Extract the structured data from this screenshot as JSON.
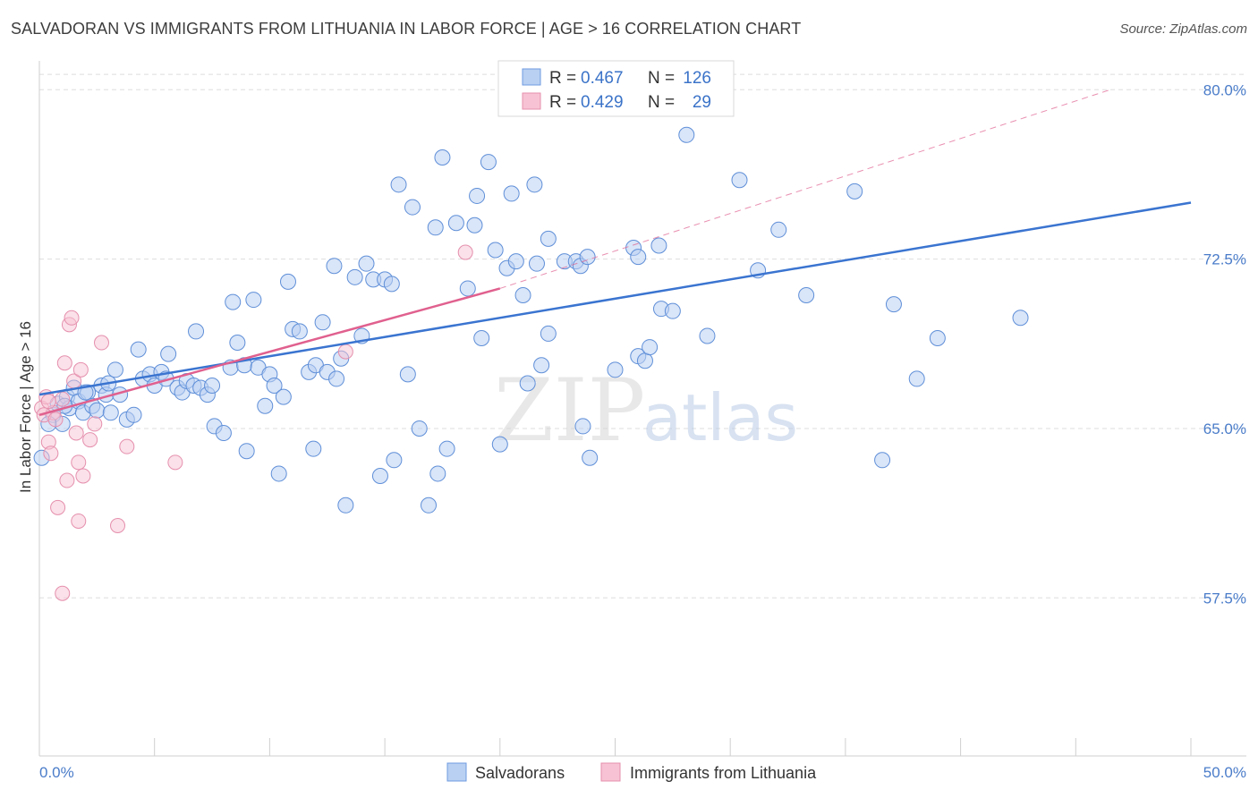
{
  "title": "SALVADORAN VS IMMIGRANTS FROM LITHUANIA IN LABOR FORCE | AGE > 16 CORRELATION CHART",
  "source": "Source: ZipAtlas.com",
  "watermark": {
    "part1": "ZIP",
    "part2": "atlas"
  },
  "colors": {
    "blue": "#3a74d0",
    "blue_fill": "#b9d0f2",
    "pink": "#e0608e",
    "pink_fill": "#f7c3d4",
    "grid": "#dddddd",
    "tick_label": "#4a7cc9"
  },
  "legend": {
    "rows": [
      {
        "r_label": "R =",
        "r_value": "0.467",
        "n_label": "N =",
        "n_value": "126"
      },
      {
        "r_label": "R =",
        "r_value": "0.429",
        "n_label": "N =",
        "n_value": "29"
      }
    ]
  },
  "bottom_legend": [
    "Salvadorans",
    "Immigrants from Lithuania"
  ],
  "chart_data": {
    "type": "scatter",
    "title": "SALVADORAN VS IMMIGRANTS FROM LITHUANIA IN LABOR FORCE | AGE > 16 CORRELATION CHART",
    "xlabel": "",
    "ylabel": "In Labor Force | Age > 16",
    "xlim": [
      0,
      50
    ],
    "ylim": [
      50.5,
      81.2
    ],
    "x_tick_labels": [
      "0.0%",
      "50.0%"
    ],
    "y_ticks": [
      57.5,
      65.0,
      72.5,
      80.0
    ],
    "y_tick_labels": [
      "57.5%",
      "65.0%",
      "72.5%",
      "80.0%"
    ],
    "grid": "horizontal dashed",
    "legend_position": "top-center",
    "series": [
      {
        "name": "Salvadorans",
        "R": 0.467,
        "N": 126,
        "trend": {
          "x": [
            0,
            50
          ],
          "y": [
            66.5,
            75.0
          ]
        },
        "points": [
          [
            0.6,
            65.6
          ],
          [
            0.8,
            66.1
          ],
          [
            1.0,
            65.2
          ],
          [
            1.2,
            66.4
          ],
          [
            1.3,
            65.9
          ],
          [
            1.5,
            66.8
          ],
          [
            1.7,
            66.2
          ],
          [
            1.9,
            65.7
          ],
          [
            2.1,
            66.6
          ],
          [
            2.3,
            66.0
          ],
          [
            2.5,
            65.8
          ],
          [
            2.7,
            66.9
          ],
          [
            2.9,
            66.5
          ],
          [
            3.1,
            65.7
          ],
          [
            3.3,
            67.6
          ],
          [
            3.5,
            66.5
          ],
          [
            3.8,
            65.4
          ],
          [
            4.1,
            65.6
          ],
          [
            4.3,
            68.5
          ],
          [
            4.5,
            67.2
          ],
          [
            4.8,
            67.4
          ],
          [
            5.0,
            66.9
          ],
          [
            5.3,
            67.5
          ],
          [
            5.5,
            67.2
          ],
          [
            5.6,
            68.3
          ],
          [
            6.0,
            66.8
          ],
          [
            6.2,
            66.6
          ],
          [
            6.4,
            67.1
          ],
          [
            6.7,
            66.9
          ],
          [
            6.8,
            69.3
          ],
          [
            7.0,
            66.8
          ],
          [
            7.3,
            66.5
          ],
          [
            7.5,
            66.9
          ],
          [
            7.6,
            65.1
          ],
          [
            8.0,
            64.8
          ],
          [
            8.3,
            67.7
          ],
          [
            8.4,
            70.6
          ],
          [
            8.6,
            68.8
          ],
          [
            8.9,
            67.8
          ],
          [
            9.0,
            64.0
          ],
          [
            9.3,
            70.7
          ],
          [
            9.5,
            67.7
          ],
          [
            9.8,
            66.0
          ],
          [
            10.0,
            67.4
          ],
          [
            10.2,
            66.9
          ],
          [
            10.4,
            63.0
          ],
          [
            10.6,
            66.4
          ],
          [
            10.8,
            71.5
          ],
          [
            11.0,
            69.4
          ],
          [
            11.3,
            69.3
          ],
          [
            11.7,
            67.5
          ],
          [
            11.9,
            64.1
          ],
          [
            12.0,
            67.8
          ],
          [
            12.3,
            69.7
          ],
          [
            12.5,
            67.5
          ],
          [
            12.8,
            72.2
          ],
          [
            12.9,
            67.2
          ],
          [
            13.1,
            68.1
          ],
          [
            13.3,
            61.6
          ],
          [
            13.7,
            71.7
          ],
          [
            14.0,
            69.1
          ],
          [
            14.2,
            72.3
          ],
          [
            14.5,
            71.6
          ],
          [
            14.8,
            62.9
          ],
          [
            15.0,
            71.6
          ],
          [
            15.3,
            71.4
          ],
          [
            15.4,
            63.6
          ],
          [
            15.6,
            75.8
          ],
          [
            16.0,
            67.4
          ],
          [
            16.2,
            74.8
          ],
          [
            16.5,
            65.0
          ],
          [
            16.9,
            61.6
          ],
          [
            17.2,
            73.9
          ],
          [
            17.3,
            63.0
          ],
          [
            17.5,
            77.0
          ],
          [
            17.7,
            64.1
          ],
          [
            18.1,
            74.1
          ],
          [
            18.6,
            71.2
          ],
          [
            18.9,
            74.0
          ],
          [
            19.0,
            75.3
          ],
          [
            19.2,
            69.0
          ],
          [
            19.5,
            76.8
          ],
          [
            19.8,
            72.9
          ],
          [
            20.0,
            64.3
          ],
          [
            20.3,
            72.1
          ],
          [
            20.5,
            75.4
          ],
          [
            20.7,
            72.4
          ],
          [
            21.0,
            70.9
          ],
          [
            21.2,
            67.0
          ],
          [
            21.5,
            75.8
          ],
          [
            21.6,
            72.3
          ],
          [
            21.8,
            67.8
          ],
          [
            22.1,
            69.2
          ],
          [
            22.1,
            73.4
          ],
          [
            22.8,
            72.4
          ],
          [
            23.3,
            72.4
          ],
          [
            23.5,
            72.2
          ],
          [
            23.6,
            65.1
          ],
          [
            23.8,
            72.6
          ],
          [
            23.9,
            63.7
          ],
          [
            25.0,
            67.6
          ],
          [
            25.8,
            73.0
          ],
          [
            26.0,
            72.6
          ],
          [
            26.0,
            68.2
          ],
          [
            26.3,
            68.0
          ],
          [
            26.5,
            68.6
          ],
          [
            26.9,
            73.1
          ],
          [
            27.0,
            70.3
          ],
          [
            27.5,
            70.2
          ],
          [
            28.1,
            78.0
          ],
          [
            29.0,
            69.1
          ],
          [
            30.4,
            76.0
          ],
          [
            31.2,
            72.0
          ],
          [
            32.1,
            73.8
          ],
          [
            33.3,
            70.9
          ],
          [
            35.4,
            75.5
          ],
          [
            36.6,
            63.6
          ],
          [
            37.1,
            70.5
          ],
          [
            38.1,
            67.2
          ],
          [
            39.0,
            69.0
          ],
          [
            42.6,
            69.9
          ],
          [
            0.1,
            63.7
          ],
          [
            0.4,
            65.2
          ],
          [
            1.1,
            66.0
          ],
          [
            2.0,
            66.6
          ],
          [
            3.0,
            67.0
          ]
        ]
      },
      {
        "name": "Immigrants from Lithuania",
        "R": 0.429,
        "N": 29,
        "trend": {
          "x": [
            0,
            20
          ],
          "y": [
            65.6,
            71.2
          ]
        },
        "trend_extension": {
          "x": [
            20,
            46.5
          ],
          "y": [
            71.2,
            80.0
          ]
        },
        "points": [
          [
            0.1,
            65.9
          ],
          [
            0.3,
            66.4
          ],
          [
            0.4,
            64.4
          ],
          [
            0.5,
            63.9
          ],
          [
            0.6,
            65.7
          ],
          [
            0.8,
            61.5
          ],
          [
            1.0,
            66.3
          ],
          [
            1.1,
            67.9
          ],
          [
            1.2,
            62.7
          ],
          [
            1.3,
            69.6
          ],
          [
            1.4,
            69.9
          ],
          [
            1.5,
            67.1
          ],
          [
            1.6,
            64.8
          ],
          [
            1.7,
            60.9
          ],
          [
            1.7,
            63.5
          ],
          [
            1.8,
            67.6
          ],
          [
            1.9,
            62.9
          ],
          [
            2.2,
            64.5
          ],
          [
            2.4,
            65.2
          ],
          [
            2.7,
            68.8
          ],
          [
            3.4,
            60.7
          ],
          [
            3.8,
            64.2
          ],
          [
            5.9,
            63.5
          ],
          [
            13.3,
            68.4
          ],
          [
            18.5,
            72.8
          ],
          [
            0.2,
            65.6
          ],
          [
            0.4,
            66.2
          ],
          [
            0.7,
            65.4
          ],
          [
            1.0,
            57.7
          ]
        ]
      }
    ]
  }
}
